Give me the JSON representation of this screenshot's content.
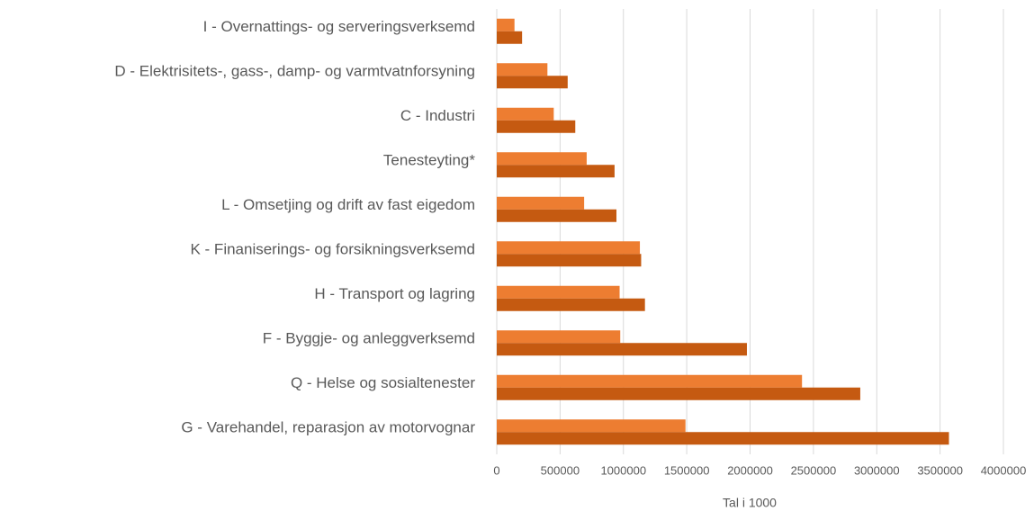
{
  "chart_data": {
    "type": "bar",
    "orientation": "horizontal",
    "x_label": "Tal i 1000",
    "categories": [
      "I - Overnattings- og serveringsverksemd",
      "D - Elektrisitets-, gass-, damp- og varmtvatnforsyning",
      "C - Industri",
      "Tenesteyting*",
      "L - Omsetjing og drift av fast eigedom",
      "K - Finaniserings- og forsikningsverksemd",
      "H - Transport og lagring",
      "F - Byggje- og anleggverksemd",
      "Q - Helse og sosialtenester",
      "G - Varehandel, reparasjon av motorvognar"
    ],
    "series": [
      {
        "color": "#ed7d31",
        "values": [
          140000,
          400000,
          450000,
          710000,
          690000,
          1130000,
          970000,
          975000,
          2410000,
          1490000
        ]
      },
      {
        "color": "#c55a11",
        "values": [
          200000,
          560000,
          620000,
          930000,
          945000,
          1140000,
          1170000,
          1975000,
          2870000,
          3570000
        ]
      }
    ],
    "xlim": [
      0,
      4000000
    ],
    "xticks": [
      0,
      500000,
      1000000,
      1500000,
      2000000,
      2500000,
      3000000,
      3500000,
      4000000
    ],
    "grid": true
  }
}
